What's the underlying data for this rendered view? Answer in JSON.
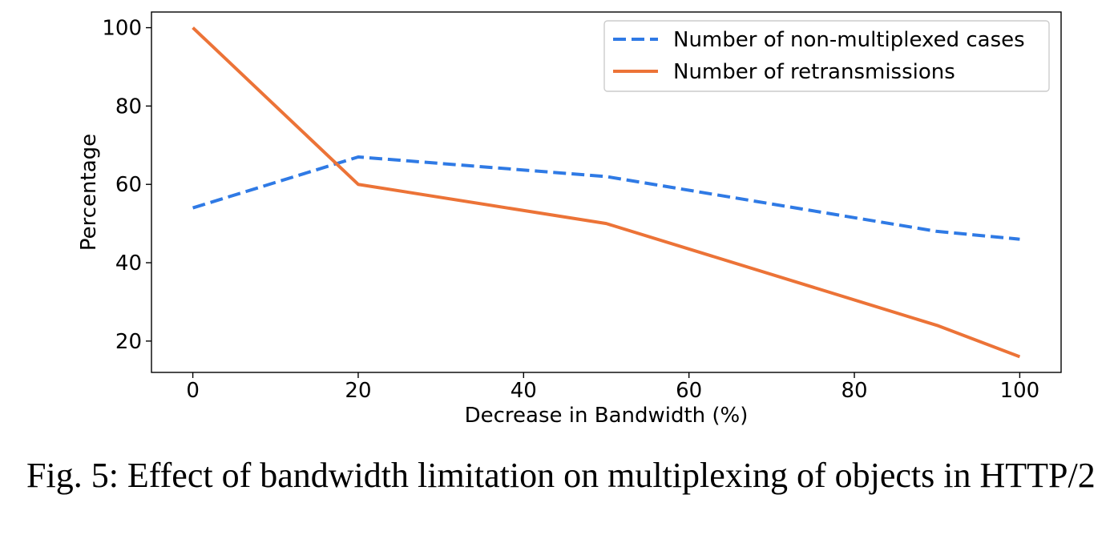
{
  "chart_data": {
    "type": "line",
    "xlabel": "Decrease in Bandwidth (%)",
    "ylabel": "Percentage",
    "xlim": [
      -5,
      105
    ],
    "ylim": [
      12,
      104
    ],
    "xticks": [
      0,
      20,
      40,
      60,
      80,
      100
    ],
    "yticks": [
      20,
      40,
      60,
      80,
      100
    ],
    "grid": false,
    "legend_position": "top-right",
    "series": [
      {
        "name": "Number of non-multiplexed cases",
        "x": [
          0,
          20,
          50,
          90,
          100
        ],
        "y": [
          54,
          67,
          62,
          48,
          46
        ],
        "color": "#2f7ae5",
        "style": "dashed"
      },
      {
        "name": "Number of retransmissions",
        "x": [
          0,
          20,
          50,
          90,
          100
        ],
        "y": [
          100,
          60,
          50,
          24,
          16
        ],
        "color": "#ec7337",
        "style": "solid"
      }
    ]
  },
  "caption": {
    "text": "Fig. 5: Effect of bandwidth limitation on multiplexing of objects in HTTP/2"
  }
}
